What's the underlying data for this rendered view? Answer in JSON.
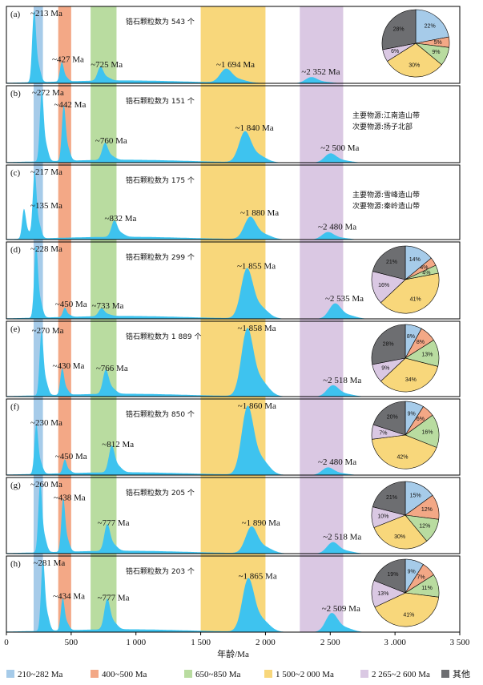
{
  "chart_data": {
    "type": "area",
    "xlabel": "年龄/Ma",
    "xlim": [
      0,
      3500
    ],
    "xticks": [
      0,
      500,
      1000,
      1500,
      2000,
      2500,
      3000,
      3500
    ],
    "xtick_labels": [
      "0",
      "500",
      "1 000",
      "1 500",
      "2 000",
      "2 500",
      "3 .000",
      "3 500"
    ],
    "colors": {
      "kde": "#3ec3ef",
      "band1": "#a6cbe9",
      "band2": "#f3a886",
      "band3": "#b9dca0",
      "band4": "#f8d77b",
      "band5": "#dac8e3",
      "other": "#6d6e71"
    },
    "bands": [
      {
        "name": "210~282 Ma",
        "range": [
          210,
          282
        ],
        "key": "band1"
      },
      {
        "name": "400~500 Ma",
        "range": [
          400,
          500
        ],
        "key": "band2"
      },
      {
        "name": "650~850 Ma",
        "range": [
          650,
          850
        ],
        "key": "band3"
      },
      {
        "name": "1 500~2 000 Ma",
        "range": [
          1500,
          2000
        ],
        "key": "band4"
      },
      {
        "name": "2 265~2 600 Ma",
        "range": [
          2265,
          2600
        ],
        "key": "band5"
      }
    ],
    "legend": [
      {
        "label": "210~282 Ma",
        "key": "band1"
      },
      {
        "label": "400~500 Ma",
        "key": "band2"
      },
      {
        "label": "650~850 Ma",
        "key": "band3"
      },
      {
        "label": "1 500~2 000 Ma",
        "key": "band4"
      },
      {
        "label": "2 265~2 600 Ma",
        "key": "band5"
      },
      {
        "label": "其他",
        "key": "other"
      }
    ],
    "panels": [
      {
        "id": "(a)",
        "count_note": "锆石颗粒数为 543 个",
        "peaks": [
          {
            "label": "~213 Ma",
            "age": 213,
            "h": 0.95
          },
          {
            "label": "~427 Ma",
            "age": 427,
            "h": 0.25
          },
          {
            "label": "~725 Ma",
            "age": 725,
            "h": 0.18
          },
          {
            "label": "~1 694 Ma",
            "age": 1694,
            "h": 0.18
          },
          {
            "label": "~2 352 Ma",
            "age": 2352,
            "h": 0.08
          }
        ],
        "pie": [
          {
            "value": 22,
            "key": "band1",
            "label": "22%"
          },
          {
            "value": 5,
            "key": "band2",
            "label": "5%"
          },
          {
            "value": 9,
            "key": "band3",
            "label": "9%"
          },
          {
            "value": 30,
            "key": "band4",
            "label": "30%"
          },
          {
            "value": 6,
            "key": "band5",
            "label": "6%"
          },
          {
            "value": 28,
            "key": "other",
            "label": "28%"
          }
        ],
        "source": null
      },
      {
        "id": "(b)",
        "count_note": "锆石颗粒数为 151 个",
        "peaks": [
          {
            "label": "~272 Ma",
            "age": 272,
            "h": 0.92
          },
          {
            "label": "~442 Ma",
            "age": 442,
            "h": 0.72
          },
          {
            "label": "~760 Ma",
            "age": 760,
            "h": 0.22
          },
          {
            "label": "~1 840 Ma",
            "age": 1840,
            "h": 0.4
          },
          {
            "label": "~2 500 Ma",
            "age": 2500,
            "h": 0.12
          }
        ],
        "pie": null,
        "source": {
          "primary": "主要物源:江南造山带",
          "secondary": "次要物源:扬子北部"
        }
      },
      {
        "id": "(c)",
        "count_note": "锆石颗粒数为 175 个",
        "peaks": [
          {
            "label": "~217 Ma",
            "age": 217,
            "h": 0.9
          },
          {
            "label": "~135 Ma",
            "age": 135,
            "h": 0.4
          },
          {
            "label": "~832 Ma",
            "age": 832,
            "h": 0.22
          },
          {
            "label": "~1 880 Ma",
            "age": 1880,
            "h": 0.3
          },
          {
            "label": "~2 480 Ma",
            "age": 2480,
            "h": 0.1
          }
        ],
        "pie": null,
        "source": {
          "primary": "主要物源:雪峰造山带",
          "secondary": "次要物源:秦岭造山带"
        }
      },
      {
        "id": "(d)",
        "count_note": "锆石颗粒数为 299 个",
        "peaks": [
          {
            "label": "~228 Ma",
            "age": 228,
            "h": 0.95
          },
          {
            "label": "~450 Ma",
            "age": 450,
            "h": 0.12
          },
          {
            "label": "~733 Ma",
            "age": 733,
            "h": 0.1
          },
          {
            "label": "~1 855 Ma",
            "age": 1855,
            "h": 0.65
          },
          {
            "label": "~2 535 Ma",
            "age": 2535,
            "h": 0.2
          }
        ],
        "pie": [
          {
            "value": 14,
            "key": "band1",
            "label": "14%"
          },
          {
            "value": 4,
            "key": "band2",
            "label": "4%"
          },
          {
            "value": 4,
            "key": "band3",
            "label": "4%"
          },
          {
            "value": 41,
            "key": "band4",
            "label": "41%"
          },
          {
            "value": 16,
            "key": "band5",
            "label": "16%"
          },
          {
            "value": 21,
            "key": "other",
            "label": "21%"
          }
        ],
        "source": null
      },
      {
        "id": "(e)",
        "count_note": "锆石颗粒数为 1 889 个",
        "peaks": [
          {
            "label": "~270 Ma",
            "age": 270,
            "h": 0.85
          },
          {
            "label": "~430 Ma",
            "age": 430,
            "h": 0.35
          },
          {
            "label": "~766 Ma",
            "age": 766,
            "h": 0.32
          },
          {
            "label": "~1 858 Ma",
            "age": 1858,
            "h": 0.9
          },
          {
            "label": "~2 518 Ma",
            "age": 2518,
            "h": 0.15
          }
        ],
        "pie": [
          {
            "value": 8,
            "key": "band1",
            "label": "8%"
          },
          {
            "value": 8,
            "key": "band2",
            "label": "8%"
          },
          {
            "value": 13,
            "key": "band3",
            "label": "13%"
          },
          {
            "value": 34,
            "key": "band4",
            "label": "34%"
          },
          {
            "value": 9,
            "key": "band5",
            "label": "9%"
          },
          {
            "value": 28,
            "key": "other",
            "label": "28%"
          }
        ],
        "source": null
      },
      {
        "id": "(f)",
        "count_note": "锆石颗粒数为 850 个",
        "peaks": [
          {
            "label": "~230 Ma",
            "age": 230,
            "h": 0.65
          },
          {
            "label": "~450 Ma",
            "age": 450,
            "h": 0.18
          },
          {
            "label": "~812 Ma",
            "age": 812,
            "h": 0.35
          },
          {
            "label": "~1 860 Ma",
            "age": 1860,
            "h": 0.9
          },
          {
            "label": "~2 480 Ma",
            "age": 2480,
            "h": 0.1
          }
        ],
        "pie": [
          {
            "value": 9,
            "key": "band1",
            "label": "9%"
          },
          {
            "value": 6,
            "key": "band2",
            "label": "6%"
          },
          {
            "value": 16,
            "key": "band3",
            "label": "16%"
          },
          {
            "value": 42,
            "key": "band4",
            "label": "42%"
          },
          {
            "value": 7,
            "key": "band5",
            "label": "7%"
          },
          {
            "value": 20,
            "key": "other",
            "label": "20%"
          }
        ],
        "source": null
      },
      {
        "id": "(g)",
        "count_note": "锆石颗粒数为 205 个",
        "peaks": [
          {
            "label": "~260 Ma",
            "age": 260,
            "h": 0.9
          },
          {
            "label": "~438 Ma",
            "age": 438,
            "h": 0.7
          },
          {
            "label": "~777 Ma",
            "age": 777,
            "h": 0.35
          },
          {
            "label": "~1 890 Ma",
            "age": 1890,
            "h": 0.35
          },
          {
            "label": "~2 518 Ma",
            "age": 2518,
            "h": 0.15
          }
        ],
        "pie": [
          {
            "value": 15,
            "key": "band1",
            "label": "15%"
          },
          {
            "value": 12,
            "key": "band2",
            "label": "12%"
          },
          {
            "value": 12,
            "key": "band3",
            "label": "12%"
          },
          {
            "value": 30,
            "key": "band4",
            "label": "30%"
          },
          {
            "value": 10,
            "key": "band5",
            "label": "10%"
          },
          {
            "value": 21,
            "key": "other",
            "label": "21%"
          }
        ],
        "source": null
      },
      {
        "id": "(h)",
        "count_note": "锆石颗粒数为 203 个",
        "peaks": [
          {
            "label": "~281 Ma",
            "age": 281,
            "h": 0.95
          },
          {
            "label": "~434 Ma",
            "age": 434,
            "h": 0.42
          },
          {
            "label": "~777 Ma",
            "age": 777,
            "h": 0.4
          },
          {
            "label": "~1 865 Ma",
            "age": 1865,
            "h": 0.7
          },
          {
            "label": "~2 509 Ma",
            "age": 2509,
            "h": 0.25
          }
        ],
        "pie": [
          {
            "value": 9,
            "key": "band1",
            "label": "9%"
          },
          {
            "value": 7,
            "key": "band2",
            "label": "7%"
          },
          {
            "value": 11,
            "key": "band3",
            "label": "11%"
          },
          {
            "value": 41,
            "key": "band4",
            "label": "41%"
          },
          {
            "value": 13,
            "key": "band5",
            "label": "13%"
          },
          {
            "value": 19,
            "key": "other",
            "label": "19%"
          }
        ],
        "source": null
      }
    ]
  }
}
